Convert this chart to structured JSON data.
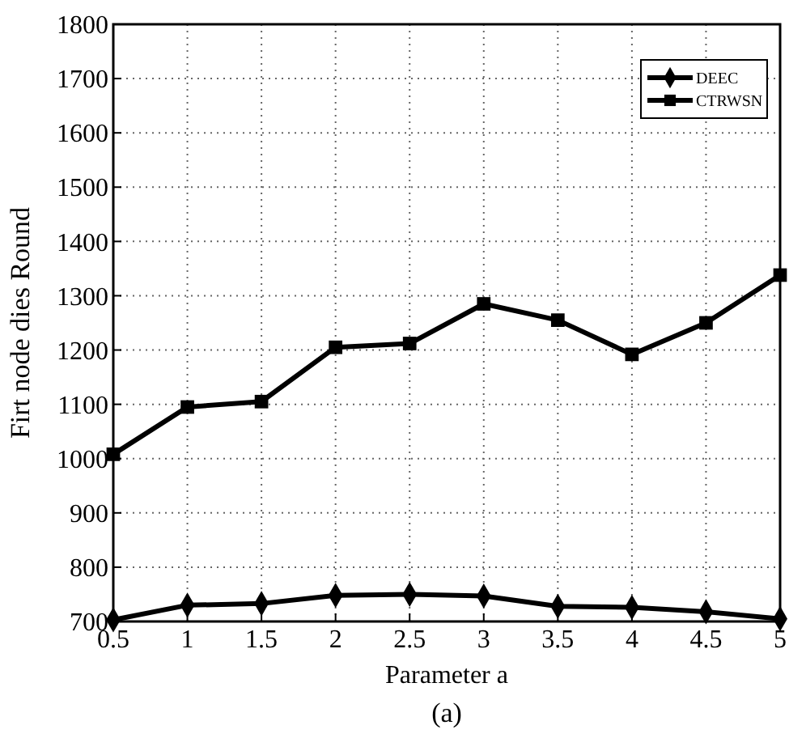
{
  "chart_data": {
    "type": "line",
    "xlabel": "Parameter a",
    "ylabel": "Firt node dies Round",
    "annotations": [
      "(a)"
    ],
    "x": [
      0.5,
      1,
      1.5,
      2,
      2.5,
      3,
      3.5,
      4,
      4.5,
      5
    ],
    "series": [
      {
        "name": "DEEC",
        "color": "#000000",
        "marker": "diamond",
        "values": [
          703,
          730,
          733,
          748,
          750,
          747,
          728,
          726,
          718,
          705
        ]
      },
      {
        "name": "CTRWSN",
        "color": "#000000",
        "marker": "square",
        "values": [
          1008,
          1095,
          1105,
          1205,
          1212,
          1285,
          1255,
          1192,
          1250,
          1338
        ]
      }
    ],
    "xlim": [
      0.5,
      5
    ],
    "xticks": [
      0.5,
      1,
      1.5,
      2,
      2.5,
      3,
      3.5,
      4,
      4.5,
      5
    ],
    "ylim": [
      700,
      1800
    ],
    "yticks": [
      700,
      800,
      900,
      1000,
      1100,
      1200,
      1300,
      1400,
      1500,
      1600,
      1700,
      1800
    ],
    "grid": true,
    "legend": "top right",
    "line_style": "solid"
  }
}
